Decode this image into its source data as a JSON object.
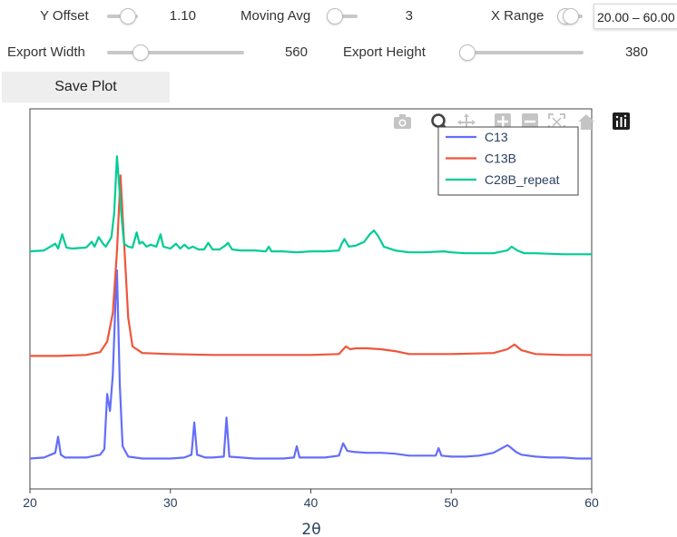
{
  "controls": {
    "y_offset": {
      "label": "Y Offset",
      "value": "1.10",
      "level": 0.25
    },
    "moving_avg": {
      "label": "Moving Avg",
      "value": "3",
      "level": 0.0
    },
    "x_range": {
      "label": "X Range",
      "value": "20.00 – 60.00"
    },
    "export_width": {
      "label": "Export Width",
      "value": "560",
      "level": 0.25
    },
    "export_height": {
      "label": "Export Height",
      "value": "380",
      "level": 0.1
    },
    "save_label": "Save Plot"
  },
  "modebar": {
    "icons": [
      "camera-icon",
      "zoom-icon",
      "pan-icon",
      "zoom-in-icon",
      "zoom-out-icon",
      "autoscale-icon",
      "reset-axes-icon"
    ],
    "logo": "plotly-logo"
  },
  "chart_data": {
    "type": "line",
    "xlabel": "2θ",
    "ylabel": "",
    "xlim": [
      20,
      60
    ],
    "xticks": [
      "20",
      "30",
      "40",
      "50",
      "60"
    ],
    "legend_position": "top-right",
    "series": [
      {
        "name": "C13",
        "color": "#636efa",
        "x": [
          20,
          21,
          21.8,
          22.0,
          22.2,
          22.5,
          23,
          24,
          25,
          25.3,
          25.5,
          25.7,
          25.9,
          26.1,
          26.2,
          26.4,
          26.6,
          27,
          28,
          29,
          30,
          31,
          31.5,
          31.7,
          31.9,
          32.5,
          33,
          33.8,
          34.0,
          34.2,
          35,
          36,
          37,
          38,
          38.8,
          39.0,
          39.2,
          40,
          41,
          42,
          42.3,
          42.6,
          43,
          44,
          45,
          46,
          47,
          48,
          48.9,
          49.1,
          49.3,
          50,
          51,
          52,
          53,
          54,
          54.2,
          54.6,
          55,
          56,
          57,
          58,
          59,
          60
        ],
        "y": [
          0.2,
          0.3,
          0.8,
          2.5,
          0.6,
          0.3,
          0.3,
          0.3,
          0.6,
          1.2,
          7.0,
          5.2,
          9.0,
          17.0,
          20.0,
          8.0,
          1.5,
          0.4,
          0.2,
          0.2,
          0.2,
          0.3,
          0.6,
          4.0,
          0.6,
          0.3,
          0.3,
          0.4,
          4.5,
          0.4,
          0.3,
          0.2,
          0.2,
          0.2,
          0.3,
          1.5,
          0.3,
          0.3,
          0.3,
          0.5,
          1.8,
          1.0,
          0.9,
          0.8,
          0.8,
          0.7,
          0.5,
          0.5,
          0.5,
          1.3,
          0.5,
          0.4,
          0.4,
          0.5,
          0.8,
          1.6,
          1.4,
          0.9,
          0.6,
          0.4,
          0.3,
          0.3,
          0.2,
          0.2
        ]
      },
      {
        "name": "C13B",
        "color": "#ef553b",
        "x": [
          20,
          22,
          24,
          25,
          25.5,
          25.9,
          26.2,
          26.45,
          26.7,
          27.0,
          27.3,
          28,
          30,
          33,
          36,
          40,
          42,
          42.5,
          42.8,
          43.2,
          44,
          45,
          46,
          47,
          50,
          53,
          54,
          54.5,
          55,
          56,
          58,
          60
        ],
        "y": [
          11.0,
          11.0,
          11.1,
          11.4,
          12.5,
          15.5,
          22.0,
          30.0,
          23.0,
          15.0,
          12.0,
          11.3,
          11.2,
          11.1,
          11.1,
          11.1,
          11.2,
          12.0,
          11.7,
          11.8,
          11.8,
          11.7,
          11.5,
          11.2,
          11.2,
          11.3,
          11.7,
          12.2,
          11.6,
          11.2,
          11.1,
          11.1
        ]
      },
      {
        "name": "C28B_repeat",
        "color": "#00cc96",
        "x": [
          20,
          21,
          21.8,
          22.0,
          22.3,
          22.6,
          23,
          24,
          24.4,
          24.6,
          24.9,
          25.2,
          25.4,
          25.8,
          26.0,
          26.2,
          26.3,
          26.5,
          26.7,
          27.0,
          27.3,
          27.6,
          27.8,
          28.0,
          28.3,
          28.6,
          29.0,
          29.3,
          29.5,
          30,
          30.4,
          30.7,
          31.0,
          31.3,
          31.6,
          32,
          32.4,
          32.7,
          33.0,
          33.5,
          33.9,
          34.1,
          34.4,
          35,
          36,
          36.8,
          37.0,
          37.2,
          38,
          39,
          40,
          41,
          42,
          42.2,
          42.4,
          42.7,
          43.2,
          43.8,
          44.2,
          44.5,
          44.8,
          45.2,
          46,
          47,
          48,
          49.5,
          50,
          51,
          52,
          53,
          54,
          54.3,
          54.7,
          55.2,
          56,
          58,
          60
        ],
        "y": [
          22.0,
          22.1,
          22.8,
          22.3,
          23.8,
          22.4,
          22.3,
          22.4,
          23.0,
          22.5,
          23.5,
          22.8,
          22.5,
          23.5,
          26.0,
          32.0,
          30.0,
          26.0,
          22.8,
          22.5,
          22.4,
          24.0,
          22.8,
          23.0,
          22.5,
          22.7,
          22.5,
          23.8,
          22.5,
          22.3,
          22.8,
          22.3,
          22.7,
          22.3,
          22.5,
          22.2,
          22.2,
          22.9,
          22.2,
          22.2,
          22.6,
          22.9,
          22.2,
          22.1,
          22.1,
          22.0,
          22.5,
          22.0,
          22.0,
          21.9,
          22.0,
          22.0,
          22.1,
          22.8,
          23.3,
          22.5,
          22.6,
          23.0,
          23.8,
          24.2,
          23.6,
          22.5,
          22.1,
          21.9,
          21.9,
          22.0,
          21.9,
          21.8,
          21.8,
          21.8,
          22.1,
          22.5,
          22.1,
          21.8,
          21.8,
          21.7,
          21.7
        ]
      }
    ]
  }
}
